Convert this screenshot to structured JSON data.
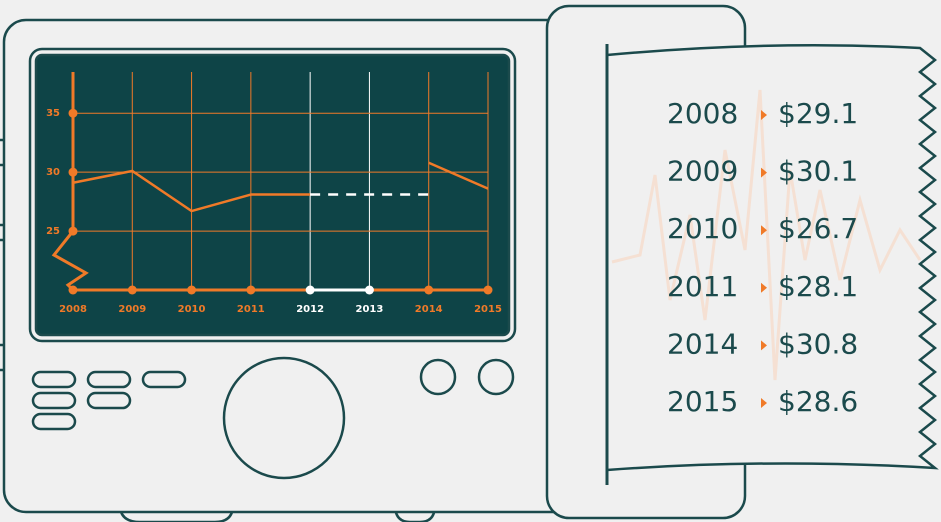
{
  "chart_data": {
    "type": "line",
    "categories": [
      "2008",
      "2009",
      "2010",
      "2011",
      "2012",
      "2013",
      "2014",
      "2015"
    ],
    "values": [
      29.1,
      30.1,
      26.7,
      28.1,
      null,
      null,
      30.8,
      28.6
    ],
    "value_labels": [
      "$29.1",
      "$30.1",
      "$26.7",
      "$28.1",
      null,
      null,
      "$30.8",
      "$28.6"
    ],
    "color": "#f07a28",
    "ylim": [
      20,
      38.5
    ],
    "yticks": [
      25,
      30,
      35
    ],
    "grid": true
  }
}
